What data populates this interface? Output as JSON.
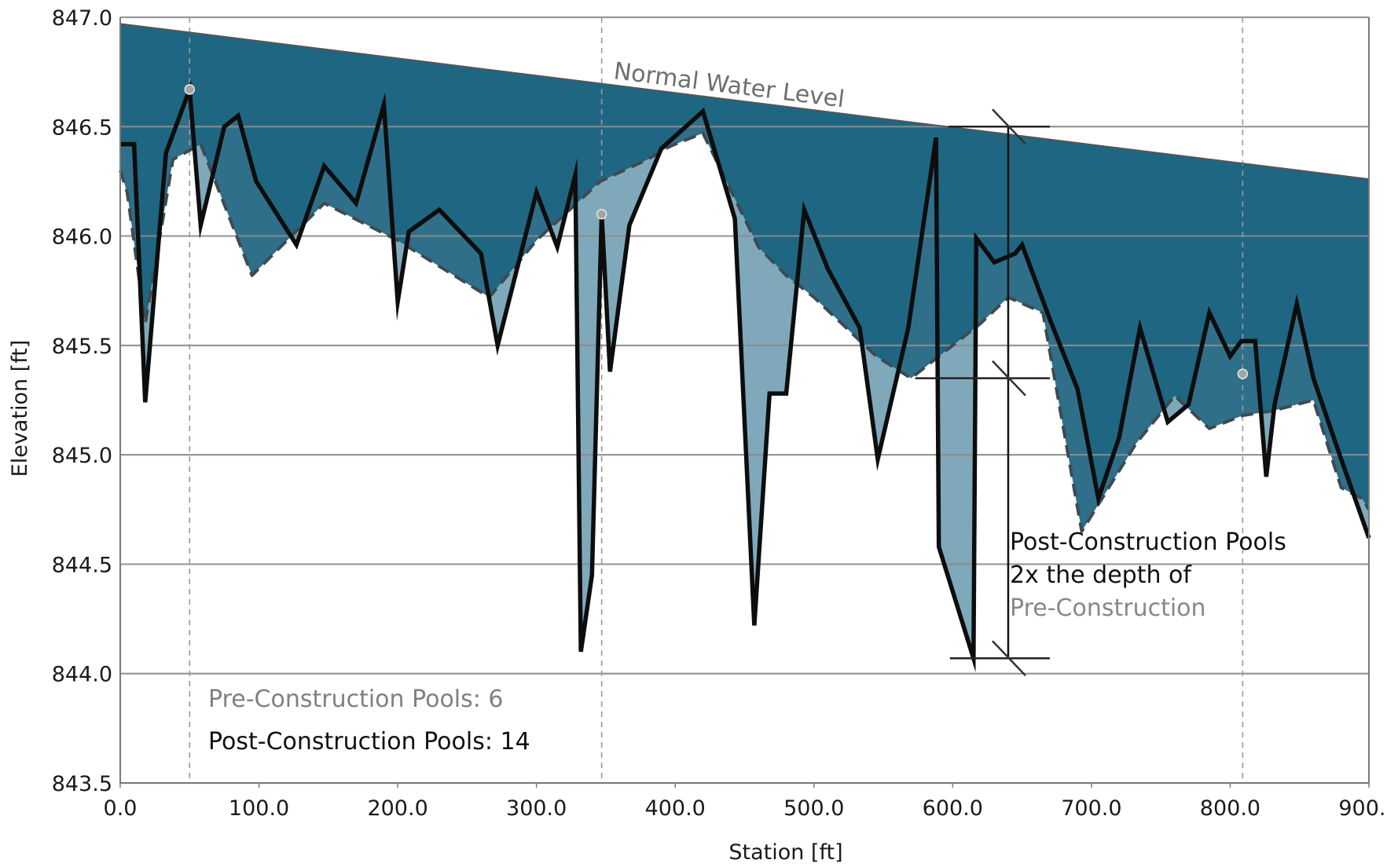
{
  "chart_data": {
    "type": "area",
    "xlabel": "Station [ft]",
    "ylabel": "Elevation [ft]",
    "xlim": [
      0,
      900
    ],
    "ylim": [
      843.5,
      847.0
    ],
    "x_ticks": [
      0,
      100,
      200,
      300,
      400,
      500,
      600,
      700,
      800,
      900
    ],
    "x_tick_labels": [
      "0.0",
      "100.0",
      "200.0",
      "300.0",
      "400.0",
      "500.0",
      "600.0",
      "700.0",
      "800.0",
      "900.0"
    ],
    "y_ticks": [
      843.5,
      844.0,
      844.5,
      845.0,
      845.5,
      846.0,
      846.5,
      847.0
    ],
    "y_tick_labels": [
      "843.5",
      "844.0",
      "844.5",
      "845.0",
      "845.5",
      "846.0",
      "846.5",
      "847.0"
    ],
    "grid": "horizontal",
    "vertical_reference_lines": [
      50,
      347,
      809
    ],
    "normal_water_level": {
      "x": [
        0,
        900
      ],
      "y": [
        846.97,
        846.26
      ]
    },
    "series": [
      {
        "role": "pre",
        "x": [
          0,
          5,
          18,
          38,
          58,
          95,
          147,
          200,
          266,
          300,
          346,
          380,
          393,
          400,
          420,
          460,
          480,
          500,
          545,
          570,
          600,
          620,
          640,
          665,
          693,
          732,
          760,
          785,
          809,
          830,
          860,
          880,
          895,
          900
        ],
        "y": [
          846.3,
          846.2,
          845.6,
          846.35,
          846.42,
          845.82,
          846.15,
          845.98,
          845.72,
          845.98,
          846.25,
          846.35,
          846.4,
          846.42,
          846.47,
          845.95,
          845.82,
          845.72,
          845.45,
          845.35,
          845.5,
          845.6,
          845.72,
          845.65,
          844.65,
          845.05,
          845.27,
          845.12,
          845.18,
          845.2,
          845.25,
          844.85,
          844.8,
          844.75
        ]
      },
      {
        "role": "post",
        "x": [
          0,
          10,
          18,
          33,
          50,
          58,
          75,
          85,
          98,
          127,
          147,
          170,
          190,
          200,
          208,
          230,
          260,
          272,
          300,
          315,
          328,
          332,
          340,
          347,
          353,
          367,
          390,
          420,
          443,
          457,
          468,
          480,
          493,
          510,
          533,
          546,
          568,
          588,
          590,
          615,
          617,
          630,
          645,
          650,
          670,
          690,
          705,
          720,
          735,
          755,
          770,
          785,
          800,
          808,
          818,
          826,
          832,
          848,
          860,
          880,
          900
        ],
        "y": [
          846.42,
          846.42,
          845.24,
          846.38,
          846.67,
          846.05,
          846.5,
          846.55,
          846.25,
          845.96,
          846.32,
          846.15,
          846.6,
          845.7,
          846.02,
          846.12,
          845.92,
          845.5,
          846.2,
          845.95,
          846.28,
          844.1,
          844.45,
          846.1,
          845.38,
          846.05,
          846.4,
          846.57,
          846.08,
          844.22,
          845.28,
          845.28,
          846.12,
          845.85,
          845.58,
          844.98,
          845.58,
          846.45,
          844.58,
          844.07,
          845.99,
          845.88,
          845.92,
          845.96,
          845.62,
          845.3,
          844.8,
          845.08,
          845.58,
          845.15,
          845.23,
          845.65,
          845.45,
          845.52,
          845.52,
          844.9,
          845.23,
          845.69,
          845.35,
          844.98,
          844.62
        ]
      }
    ],
    "highlight_points": [
      {
        "x": 50,
        "y": 846.67
      },
      {
        "x": 347,
        "y": 846.1
      },
      {
        "x": 809,
        "y": 845.37
      }
    ],
    "depth_annotation": {
      "x": 640,
      "levels": [
        846.5,
        845.35,
        844.07
      ],
      "lines": [
        "Post-Construction Pools",
        "2x the depth of",
        "Pre-Construction"
      ]
    },
    "labels": {
      "water_level": "Normal Water Level",
      "pre_pools": "Pre-Construction Pools: 6",
      "post_pools": "Post-Construction Pools: 14"
    },
    "colors": {
      "water": "#1f6682",
      "post_fill": "#2f6f8a",
      "pre_fill": "#7fa9bb",
      "grid": "#8c8c8c",
      "gray_text": "#808080",
      "black": "#111111"
    }
  }
}
